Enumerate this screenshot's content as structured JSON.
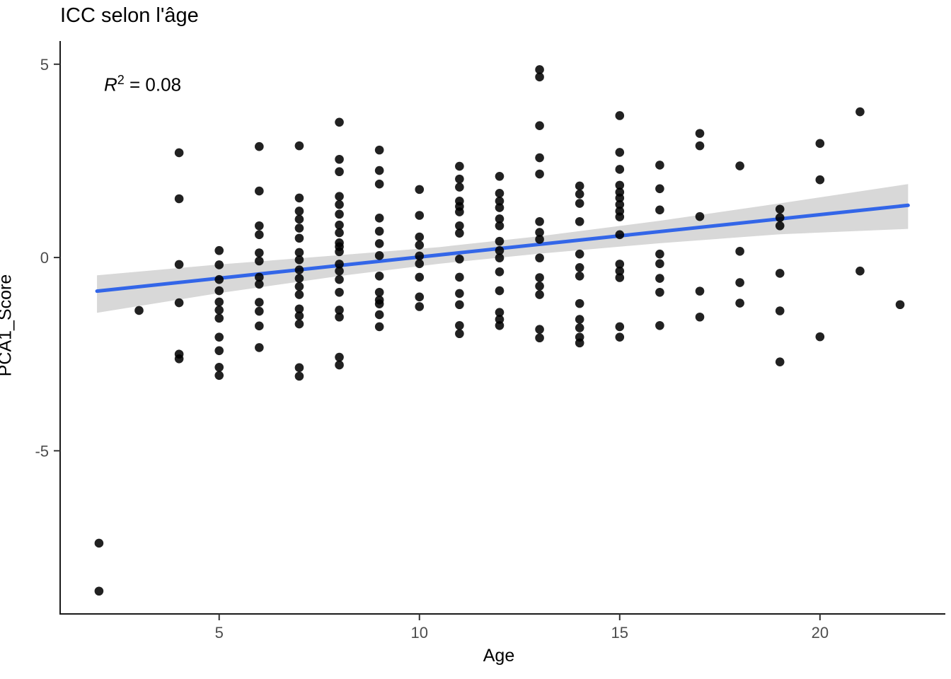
{
  "title": "ICC selon l'âge",
  "annotation": {
    "r_label": "R",
    "exponent": "2",
    "value_text": " = 0.08"
  },
  "colors": {
    "point": "#000000",
    "regression_line": "#3366E8",
    "confidence_band": "#D8D8D8",
    "axis_line": "#1a1a1a",
    "tick_mark": "#333333",
    "tick_label": "#4D4D4D",
    "title_color": "#000000",
    "background": "#FFFFFF"
  },
  "chart_data": {
    "type": "scatter",
    "title": "ICC selon l'âge",
    "xlabel": "Age",
    "ylabel": "PCA1_Score",
    "r_squared_label": "R² = 0.08",
    "grid": false,
    "legend_position": "none",
    "x_ticks": [
      5,
      10,
      15,
      20
    ],
    "y_ticks": [
      -5,
      0,
      5
    ],
    "xlim": [
      1.03,
      23.13
    ],
    "ylim": [
      -9.22,
      5.6
    ],
    "points": [
      [
        2,
        -7.39
      ],
      [
        2,
        -8.63
      ],
      [
        3,
        -1.37
      ],
      [
        4,
        2.71
      ],
      [
        4,
        1.52
      ],
      [
        4,
        -0.18
      ],
      [
        4,
        -1.17
      ],
      [
        4,
        -2.5
      ],
      [
        4,
        -2.62
      ],
      [
        5,
        0.18
      ],
      [
        5,
        -0.19
      ],
      [
        5,
        -0.57
      ],
      [
        5,
        -0.86
      ],
      [
        5,
        -1.15
      ],
      [
        5,
        -1.36
      ],
      [
        5,
        -1.57
      ],
      [
        5,
        -2.06
      ],
      [
        5,
        -2.41
      ],
      [
        5,
        -2.84
      ],
      [
        5,
        -3.05
      ],
      [
        6,
        2.87
      ],
      [
        6,
        1.72
      ],
      [
        6,
        0.82
      ],
      [
        6,
        0.59
      ],
      [
        6,
        0.12
      ],
      [
        6,
        -0.09
      ],
      [
        6,
        -0.51
      ],
      [
        6,
        -0.69
      ],
      [
        6,
        -1.16
      ],
      [
        6,
        -1.39
      ],
      [
        6,
        -1.77
      ],
      [
        6,
        -2.33
      ],
      [
        7,
        2.89
      ],
      [
        7,
        1.54
      ],
      [
        7,
        1.2
      ],
      [
        7,
        0.99
      ],
      [
        7,
        0.76
      ],
      [
        7,
        0.5
      ],
      [
        7,
        0.13
      ],
      [
        7,
        -0.06
      ],
      [
        7,
        -0.32
      ],
      [
        7,
        -0.54
      ],
      [
        7,
        -0.75
      ],
      [
        7,
        -0.96
      ],
      [
        7,
        -1.33
      ],
      [
        7,
        -1.51
      ],
      [
        7,
        -1.72
      ],
      [
        7,
        -2.85
      ],
      [
        7,
        -3.07
      ],
      [
        8,
        3.5
      ],
      [
        8,
        2.54
      ],
      [
        8,
        2.22
      ],
      [
        8,
        1.58
      ],
      [
        8,
        1.37
      ],
      [
        8,
        1.12
      ],
      [
        8,
        0.84
      ],
      [
        8,
        0.64
      ],
      [
        8,
        0.38
      ],
      [
        8,
        0.28
      ],
      [
        8,
        0.15
      ],
      [
        8,
        -0.17
      ],
      [
        8,
        -0.35
      ],
      [
        8,
        -0.57
      ],
      [
        8,
        -0.9
      ],
      [
        8,
        -1.36
      ],
      [
        8,
        -1.54
      ],
      [
        8,
        -2.58
      ],
      [
        8,
        -2.78
      ],
      [
        9,
        2.78
      ],
      [
        9,
        2.25
      ],
      [
        9,
        1.9
      ],
      [
        9,
        1.02
      ],
      [
        9,
        0.68
      ],
      [
        9,
        0.36
      ],
      [
        9,
        0.05
      ],
      [
        9,
        -0.48
      ],
      [
        9,
        -0.9
      ],
      [
        9,
        -1.1
      ],
      [
        9,
        -1.2
      ],
      [
        9,
        -1.48
      ],
      [
        9,
        -1.79
      ],
      [
        10,
        1.76
      ],
      [
        10,
        1.09
      ],
      [
        10,
        0.53
      ],
      [
        10,
        0.32
      ],
      [
        10,
        0.04
      ],
      [
        10,
        -0.16
      ],
      [
        10,
        -0.51
      ],
      [
        10,
        -1.02
      ],
      [
        10,
        -1.27
      ],
      [
        11,
        2.36
      ],
      [
        11,
        2.03
      ],
      [
        11,
        1.82
      ],
      [
        11,
        1.46
      ],
      [
        11,
        1.32
      ],
      [
        11,
        1.18
      ],
      [
        11,
        0.82
      ],
      [
        11,
        0.63
      ],
      [
        11,
        -0.04
      ],
      [
        11,
        -0.51
      ],
      [
        11,
        -0.93
      ],
      [
        11,
        -1.22
      ],
      [
        11,
        -1.76
      ],
      [
        11,
        -1.97
      ],
      [
        12,
        2.1
      ],
      [
        12,
        1.66
      ],
      [
        12,
        1.46
      ],
      [
        12,
        1.29
      ],
      [
        12,
        1.0
      ],
      [
        12,
        0.82
      ],
      [
        12,
        0.42
      ],
      [
        12,
        0.18
      ],
      [
        12,
        -0.01
      ],
      [
        12,
        -0.37
      ],
      [
        12,
        -0.86
      ],
      [
        12,
        -1.42
      ],
      [
        12,
        -1.6
      ],
      [
        12,
        -1.76
      ],
      [
        13,
        4.86
      ],
      [
        13,
        4.67
      ],
      [
        13,
        3.41
      ],
      [
        13,
        2.58
      ],
      [
        13,
        2.16
      ],
      [
        13,
        0.93
      ],
      [
        13,
        0.65
      ],
      [
        13,
        0.47
      ],
      [
        13,
        -0.01
      ],
      [
        13,
        -0.52
      ],
      [
        13,
        -0.74
      ],
      [
        13,
        -0.96
      ],
      [
        13,
        -1.86
      ],
      [
        13,
        -2.08
      ],
      [
        14,
        1.85
      ],
      [
        14,
        1.64
      ],
      [
        14,
        1.4
      ],
      [
        14,
        0.93
      ],
      [
        14,
        0.09
      ],
      [
        14,
        -0.26
      ],
      [
        14,
        -0.48
      ],
      [
        14,
        -1.19
      ],
      [
        14,
        -1.6
      ],
      [
        14,
        -1.82
      ],
      [
        14,
        -2.06
      ],
      [
        14,
        -2.21
      ],
      [
        15,
        3.67
      ],
      [
        15,
        2.72
      ],
      [
        15,
        2.28
      ],
      [
        15,
        1.87
      ],
      [
        15,
        1.69
      ],
      [
        15,
        1.54
      ],
      [
        15,
        1.37
      ],
      [
        15,
        1.2
      ],
      [
        15,
        1.05
      ],
      [
        15,
        0.59
      ],
      [
        15,
        -0.17
      ],
      [
        15,
        -0.35
      ],
      [
        15,
        -0.52
      ],
      [
        15,
        -1.79
      ],
      [
        15,
        -2.06
      ],
      [
        16,
        2.39
      ],
      [
        16,
        1.78
      ],
      [
        16,
        1.23
      ],
      [
        16,
        0.09
      ],
      [
        16,
        -0.16
      ],
      [
        16,
        -0.54
      ],
      [
        16,
        -0.9
      ],
      [
        16,
        -1.76
      ],
      [
        17,
        3.21
      ],
      [
        17,
        2.89
      ],
      [
        17,
        1.06
      ],
      [
        17,
        -0.87
      ],
      [
        17,
        -1.54
      ],
      [
        18,
        2.37
      ],
      [
        18,
        0.16
      ],
      [
        18,
        -0.65
      ],
      [
        18,
        -1.18
      ],
      [
        19,
        1.25
      ],
      [
        19,
        1.03
      ],
      [
        19,
        0.82
      ],
      [
        19,
        -0.41
      ],
      [
        19,
        -1.38
      ],
      [
        19,
        -2.7
      ],
      [
        20,
        2.95
      ],
      [
        20,
        2.01
      ],
      [
        20,
        -2.05
      ],
      [
        21,
        3.77
      ],
      [
        21,
        -0.35
      ],
      [
        22,
        -1.22
      ]
    ],
    "regression": {
      "x1": 1.95,
      "y1": -0.87,
      "x2": 22.2,
      "y2": 1.35
    },
    "confidence_band": {
      "ages": [
        1.95,
        5,
        8,
        10.5,
        13,
        16,
        19,
        22.2
      ],
      "upper": [
        -0.46,
        -0.18,
        0.06,
        0.27,
        0.55,
        0.95,
        1.4,
        1.9
      ],
      "lower": [
        -1.43,
        -0.92,
        -0.48,
        -0.16,
        0.1,
        0.37,
        0.6,
        0.74
      ]
    }
  }
}
